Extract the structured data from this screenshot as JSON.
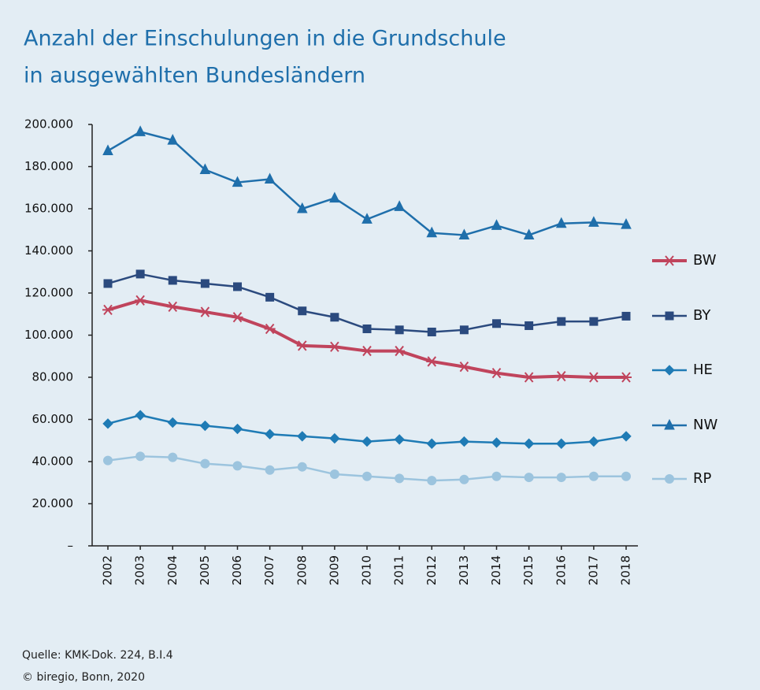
{
  "chart_data": {
    "type": "line",
    "title": [
      "Anzahl der Einschulungen in die Grundschule",
      "in ausgewählten Bundesländern"
    ],
    "categories": [
      "2002",
      "2003",
      "2004",
      "2005",
      "2006",
      "2007",
      "2008",
      "2009",
      "2010",
      "2011",
      "2012",
      "2013",
      "2014",
      "2015",
      "2016",
      "2017",
      "2018"
    ],
    "series": [
      {
        "name": "BW",
        "color": "#c0445c",
        "marker": "asterisk",
        "values": [
          112000,
          116500,
          113500,
          111000,
          108500,
          103000,
          95000,
          94500,
          92500,
          92500,
          87500,
          85000,
          82000,
          80000,
          80500,
          80000,
          80000
        ]
      },
      {
        "name": "BY",
        "color": "#2b4a7e",
        "marker": "square",
        "values": [
          124500,
          129000,
          126000,
          124500,
          123000,
          118000,
          111500,
          108500,
          103000,
          102500,
          101500,
          102500,
          105500,
          104500,
          106500,
          106500,
          109000
        ]
      },
      {
        "name": "HE",
        "color": "#1f7bb5",
        "marker": "diamond",
        "values": [
          58000,
          62000,
          58500,
          57000,
          55500,
          53000,
          52000,
          51000,
          49500,
          50500,
          48500,
          49500,
          49000,
          48500,
          48500,
          49500,
          52000
        ]
      },
      {
        "name": "NW",
        "color": "#1f6fab",
        "marker": "triangle",
        "values": [
          187500,
          196500,
          192500,
          178500,
          172500,
          174000,
          160000,
          165000,
          155000,
          161000,
          148500,
          147500,
          152000,
          147500,
          153000,
          153500,
          152500
        ]
      },
      {
        "name": "RP",
        "color": "#9cc4de",
        "marker": "circle",
        "values": [
          40500,
          42500,
          42000,
          39000,
          38000,
          36000,
          37500,
          34000,
          33000,
          32000,
          31000,
          31500,
          33000,
          32500,
          32500,
          33000,
          33000
        ]
      }
    ],
    "ylim": [
      0,
      200000
    ],
    "yticks": [
      {
        "value": 0,
        "label": "–"
      },
      {
        "value": 20000,
        "label": "20.000"
      },
      {
        "value": 40000,
        "label": "40.000"
      },
      {
        "value": 60000,
        "label": "60.000"
      },
      {
        "value": 80000,
        "label": "80.000"
      },
      {
        "value": 100000,
        "label": "100.000"
      },
      {
        "value": 120000,
        "label": "120.000"
      },
      {
        "value": 140000,
        "label": "140.000"
      },
      {
        "value": 160000,
        "label": "160.000"
      },
      {
        "value": 180000,
        "label": "180.000"
      },
      {
        "value": 200000,
        "label": "200.000"
      }
    ],
    "legend": "right",
    "source": "Quelle: KMK-Dok. 224, B.I.4",
    "credit": "© biregio, Bonn, 2020"
  }
}
